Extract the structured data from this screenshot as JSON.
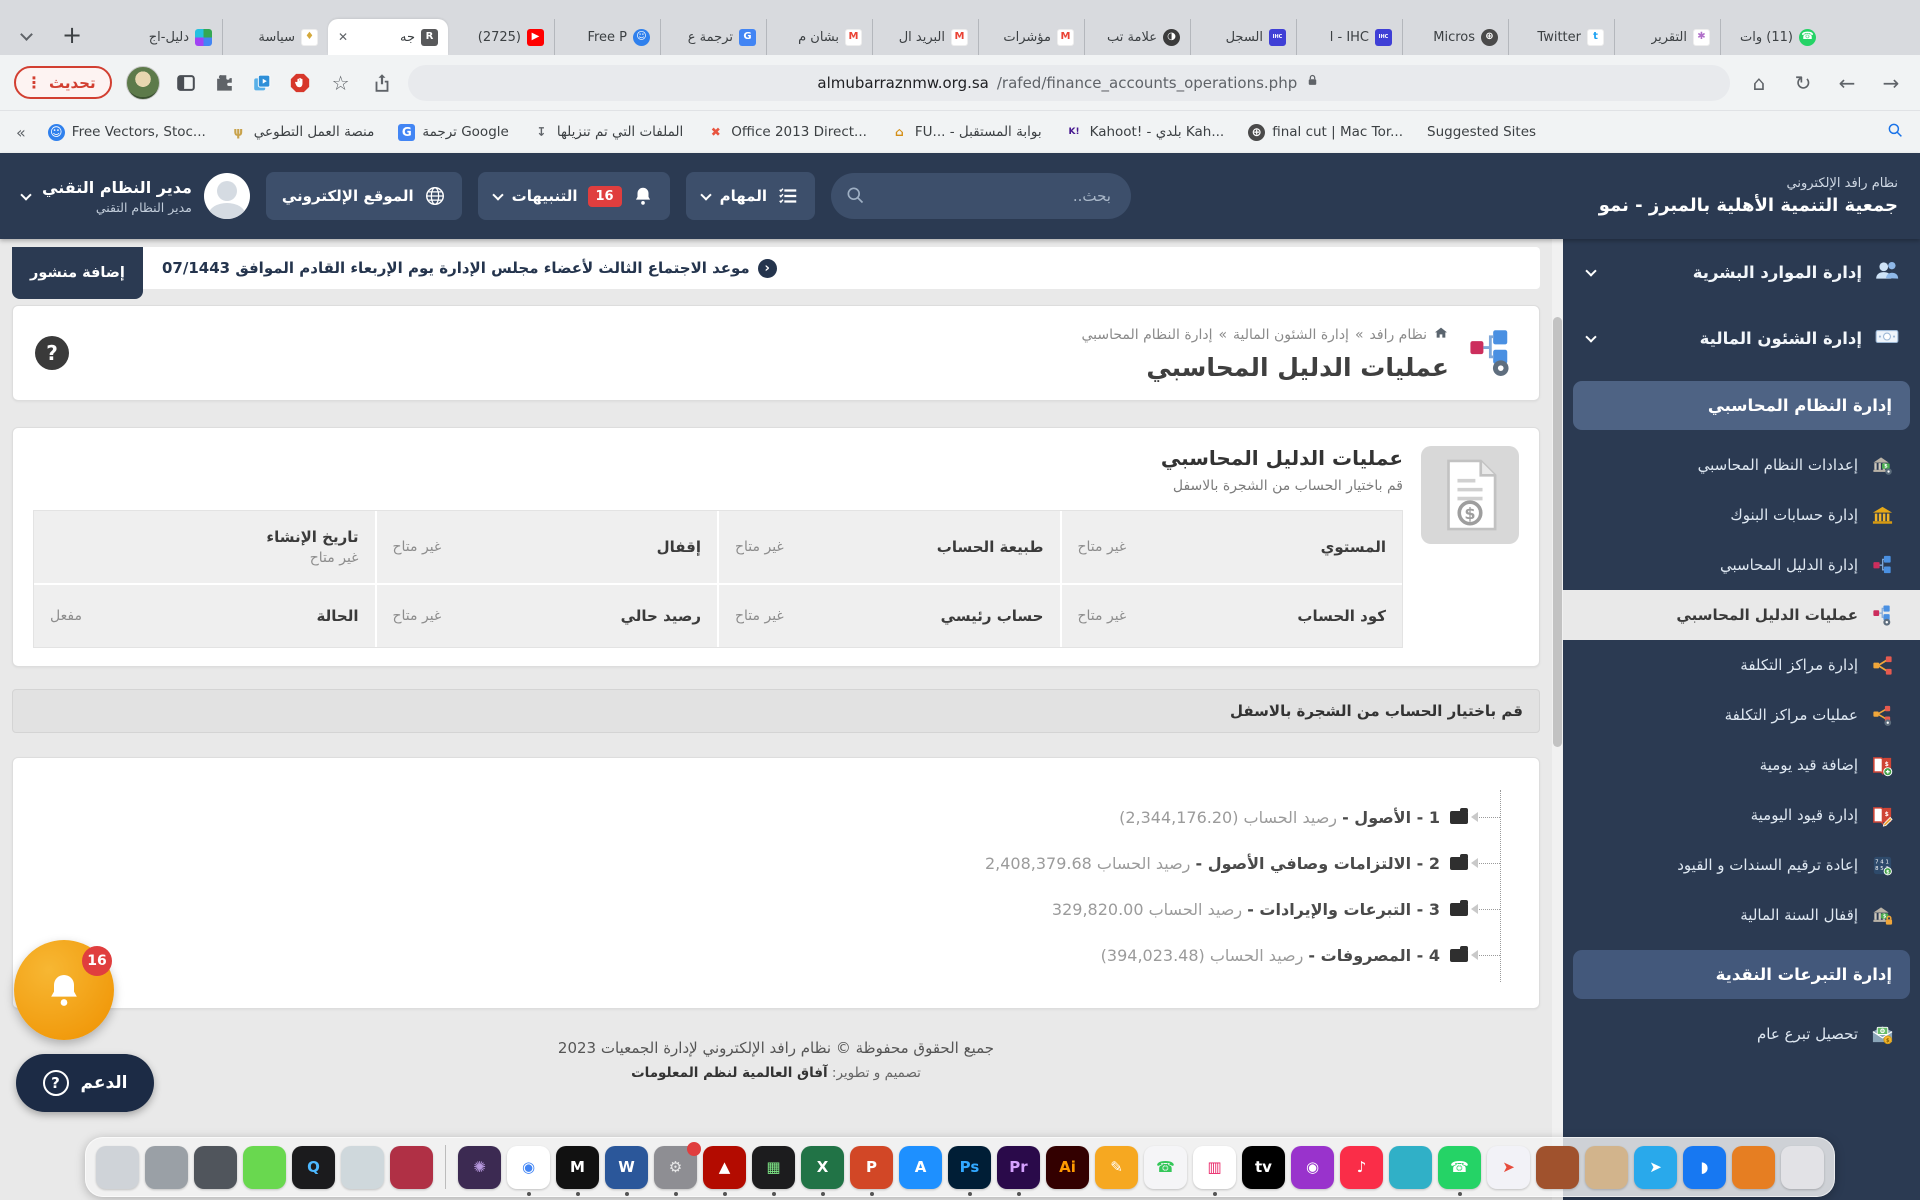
{
  "browser": {
    "close_glyph": "✕",
    "new_tab_plus": "+",
    "tabs": [
      {
        "label": "دليل-اج",
        "icon": "grid-favicon",
        "bg": "grid",
        "glyph": "",
        "fg": "#ffffff"
      },
      {
        "label": "سياسة",
        "icon": "feather-favicon",
        "bg": "#ffffff",
        "glyph": "♦",
        "fg": "#d4a93c"
      },
      {
        "label": "جه",
        "icon": "rafed-favicon",
        "bg": "#58595b",
        "glyph": "R",
        "fg": "#ffffff",
        "active": true
      },
      {
        "label": "(2725)",
        "icon": "youtube-favicon",
        "bg": "#ff0000",
        "glyph": "▶",
        "fg": "#ffffff"
      },
      {
        "label": "Free P",
        "icon": "robot-favicon",
        "bg": "#2f80ed",
        "glyph": "☺",
        "fg": "#ffffff",
        "round": true
      },
      {
        "label": "ترجمة ع",
        "icon": "translate-favicon",
        "bg": "#4285f4",
        "glyph": "G",
        "fg": "#ffffff"
      },
      {
        "label": "بشأن م",
        "icon": "gmail-icon",
        "bg": "#ffffff",
        "glyph": "M",
        "fg": "#ea4335"
      },
      {
        "label": "البريد ال",
        "icon": "gmail-icon",
        "bg": "#ffffff",
        "glyph": "M",
        "fg": "#ea4335"
      },
      {
        "label": "مؤشرات",
        "icon": "gmail-icon",
        "bg": "#ffffff",
        "glyph": "M",
        "fg": "#ea4335"
      },
      {
        "label": "علامة تب",
        "icon": "brave-icon",
        "bg": "#3b3b3b",
        "glyph": "◑",
        "fg": "#ffffff",
        "round": true
      },
      {
        "label": "السجل",
        "icon": "ihc-icon",
        "bg": "#3f3fd6",
        "glyph": "IHC",
        "fg": "#ffffff",
        "tiny": true
      },
      {
        "label": "IHC - ا",
        "icon": "ihc-icon",
        "bg": "#3f3fd6",
        "glyph": "IHC",
        "fg": "#ffffff",
        "tiny": true
      },
      {
        "label": "Micros",
        "icon": "globe-favicon",
        "bg": "#4a4a4a",
        "glyph": "⊕",
        "fg": "#ffffff",
        "round": true
      },
      {
        "label": "Twitter",
        "icon": "twitter-icon",
        "bg": "#ffffff",
        "glyph": "t",
        "fg": "#1da1f2"
      },
      {
        "label": "التقرير",
        "icon": "flower-icon",
        "bg": "#ffffff",
        "glyph": "✱",
        "fg": "#b06fc9"
      },
      {
        "label": "(11) وات",
        "icon": "whatsapp-icon",
        "bg": "#25d366",
        "glyph": "☎",
        "fg": "#ffffff",
        "round": true
      }
    ],
    "update_button": "تحديث",
    "dots_glyph": "⋮",
    "toolbar_glyphs": {
      "star": "☆",
      "home": "⌂",
      "reload": "↻",
      "back": "←",
      "forward": "→"
    },
    "url_host": "almubarraznmw.org.sa",
    "url_path": "/rafed/finance_accounts_operations.php",
    "bookmarks_overflow": "«",
    "bookmarks": [
      {
        "label": "Free Vectors, Stoc...",
        "glyph": "☺",
        "fg": "#ffffff",
        "bg": "#2f80ed",
        "round": true
      },
      {
        "label": "منصة العمل التطوعي",
        "glyph": "ψ",
        "fg": "#c8a24b",
        "bg": "transparent"
      },
      {
        "label": "ترجمة Google",
        "glyph": "G",
        "fg": "#ffffff",
        "bg": "#4285f4"
      },
      {
        "label": "الملفات التي تم تنزيلها",
        "glyph": "↧",
        "fg": "#5f6368",
        "bg": "transparent"
      },
      {
        "label": "Office 2013 Direct...",
        "glyph": "✖",
        "fg": "#e8543f",
        "bg": "transparent"
      },
      {
        "label": "FU... - بوابة المستقبل",
        "glyph": "⌂",
        "fg": "#d48f17",
        "bg": "transparent"
      },
      {
        "label": "Kahoot! - بلدي Kah...",
        "glyph": "K!",
        "fg": "#46178f",
        "bg": "transparent",
        "tiny": true
      },
      {
        "label": "final cut | Mac Tor...",
        "glyph": "⊕",
        "fg": "#ffffff",
        "bg": "#4a4a4a",
        "round": true
      },
      {
        "label": "Suggested Sites",
        "glyph": "",
        "fg": "#5f6368",
        "bg": "transparent"
      }
    ]
  },
  "header": {
    "brand_title": "نظام رافد الإلكتروني",
    "brand_subtitle": "جمعية التنمية الأهلية بالمبرز - نمو",
    "search_placeholder": "بحث..",
    "tasks_label": "المهام",
    "notifications_label": "التنبيهات",
    "notifications_count": "16",
    "website_label": "الموقع الإلكتروني",
    "user_name": "مدير النظام التقني",
    "user_role": "مدير النظام التقني"
  },
  "announcement": {
    "add_post_label": "إضافة منشور",
    "ticker_icon_glyph": "‹",
    "ticker": "موعد الاجتماع الثالث لأعضاء مجلس الإدارة يوم الإربعاء القادم الموافق 07/1443"
  },
  "sidebar": {
    "entries": [
      {
        "type": "section",
        "label": "إدارة الموارد البشرية",
        "icon": "users-icon"
      },
      {
        "type": "section",
        "label": "إدارة الشئون المالية",
        "icon": "money-icon"
      },
      {
        "type": "group",
        "label": "إدارة النظام المحاسبي"
      },
      {
        "type": "item",
        "label": "إعدادات النظام المحاسبي",
        "icon": "bank-gear-icon"
      },
      {
        "type": "item",
        "label": "إدارة حسابات البنوك",
        "icon": "bank-gold-icon"
      },
      {
        "type": "item",
        "label": "إدارة الدليل المحاسبي",
        "icon": "tree-icon"
      },
      {
        "type": "item",
        "label": "عمليات الدليل المحاسبي",
        "icon": "tree-gear-icon",
        "active": true
      },
      {
        "type": "item",
        "label": "إدارة مراكز التكلفة",
        "icon": "share-icon"
      },
      {
        "type": "item",
        "label": "عمليات مراكز التكلفة",
        "icon": "share-gear-icon"
      },
      {
        "type": "item",
        "label": "إضافة قيد يومية",
        "icon": "book-plus-icon"
      },
      {
        "type": "item",
        "label": "إدارة قيود اليومية",
        "icon": "book-pencil-icon"
      },
      {
        "type": "item",
        "label": "إعادة ترقيم السندات و القيود",
        "icon": "numbers-icon"
      },
      {
        "type": "item",
        "label": "إقفال السنة المالية",
        "icon": "bank-lock-icon"
      },
      {
        "type": "group",
        "label": "إدارة التبرعات النقدية",
        "variant": "g2"
      },
      {
        "type": "item",
        "label": "تحصيل تبرع عام",
        "icon": "donation-icon"
      }
    ]
  },
  "page": {
    "breadcrumb": {
      "root": "نظام رافد",
      "sep": "»",
      "level1": "إدارة الشئون المالية",
      "level2": "إدارة النظام المحاسبي"
    },
    "title": "عمليات الدليل المحاسبي",
    "help_glyph": "?",
    "card": {
      "title": "عمليات الدليل المحاسبي",
      "subtitle": "قم باختيار الحساب من الشجرة بالاسفل",
      "table_rows": [
        [
          {
            "label": "المستوي",
            "value": "غير متاح"
          },
          {
            "label": "طبيعة الحساب",
            "value": "غير متاح"
          },
          {
            "label": "إقفال",
            "value": "غير متاح"
          },
          {
            "label": "تاريخ الإنشاء",
            "value": "غير متاح"
          }
        ],
        [
          {
            "label": "كود الحساب",
            "value": "غير متاح"
          },
          {
            "label": "حساب رئيسي",
            "value": "غير متاح"
          },
          {
            "label": "رصيد حالي",
            "value": "غير متاح"
          },
          {
            "label": "الحالة",
            "value": "مفعل"
          }
        ]
      ]
    },
    "picker_bar": "قم باختيار الحساب من الشجرة بالاسفل",
    "tree": [
      {
        "title": "1 - الأصول -",
        "rest": "رصيد الحساب (2,344,176.20)"
      },
      {
        "title": "2 - الالتزامات وصافي الأصول -",
        "rest": "رصيد الحساب 2,408,379.68"
      },
      {
        "title": "3 - التبرعات والإيرادات -",
        "rest": "رصيد الحساب 329,820.00"
      },
      {
        "title": "4 - المصروفات -",
        "rest": "رصيد الحساب (394,023.48)"
      }
    ],
    "footer": {
      "line1": "جميع الحقوق محفوظة © نظام رافد الإلكتروني لإدارة الجمعيات 2023",
      "line2_label": "تصميم و تطوير:",
      "line2_value": "آفاق العالمية لنظم المعلومات"
    }
  },
  "floating": {
    "support_label": "الدعم",
    "help_glyph": "?",
    "badge": "16"
  },
  "dock": {
    "apps": [
      {
        "name": "app-window",
        "color": "#cfd3d8"
      },
      {
        "name": "app-gray-doc",
        "color": "#9aa0a6"
      },
      {
        "name": "app-dark",
        "color": "#50555c"
      },
      {
        "name": "app-unarchiver",
        "color": "#69d84f"
      },
      {
        "name": "app-quicktime",
        "color": "#1b1b1d",
        "glyph": "Q",
        "fg": "#4db8ff"
      },
      {
        "name": "app-preview",
        "color": "#cfd8dc"
      },
      {
        "name": "app-redmedia",
        "color": "#b03045"
      },
      {
        "sep": true,
        "name": "dock-separator"
      },
      {
        "name": "app-darkpurple",
        "color": "#3c2a52",
        "glyph": "✺",
        "fg": "#b99ae0"
      },
      {
        "name": "app-chrome",
        "color": "#ffffff",
        "glyph": "◉",
        "fg": "#4285f4",
        "dot": true
      },
      {
        "name": "app-m-black",
        "color": "#111111",
        "glyph": "M",
        "fg": "#ffffff",
        "dot": true
      },
      {
        "name": "app-word",
        "color": "#2b579a",
        "glyph": "W",
        "fg": "#ffffff",
        "dot": true
      },
      {
        "name": "app-settings",
        "color": "#8e8e93",
        "glyph": "⚙",
        "fg": "#e8e8e8",
        "badge": true,
        "dot": true
      },
      {
        "name": "app-acrobat",
        "color": "#b30b00",
        "glyph": "▲",
        "fg": "#ffffff",
        "dot": true
      },
      {
        "name": "app-finalcut",
        "color": "#1c1c1e",
        "glyph": "▦",
        "fg": "#7ee787",
        "dot": true
      },
      {
        "name": "app-excel",
        "color": "#217346",
        "glyph": "X",
        "fg": "#ffffff",
        "dot": true
      },
      {
        "name": "app-powerpoint",
        "color": "#d24726",
        "glyph": "P",
        "fg": "#ffffff",
        "dot": true
      },
      {
        "name": "app-appstore",
        "color": "#1e90ff",
        "glyph": "A",
        "fg": "#ffffff"
      },
      {
        "name": "app-photoshop",
        "color": "#001e36",
        "glyph": "Ps",
        "fg": "#31a8ff",
        "dot": true
      },
      {
        "name": "app-premiere",
        "color": "#2a0a4a",
        "glyph": "Pr",
        "fg": "#d6a1ff",
        "dot": true
      },
      {
        "name": "app-illustrator",
        "color": "#330000",
        "glyph": "Ai",
        "fg": "#ff9a00"
      },
      {
        "name": "app-pencil",
        "color": "#f6a821",
        "glyph": "✎",
        "fg": "#ffffff"
      },
      {
        "name": "app-facetime",
        "color": "#f5f5f7",
        "glyph": "☎",
        "fg": "#34c759"
      },
      {
        "name": "app-charts",
        "color": "#ffffff",
        "glyph": "▥",
        "fg": "#e91e63",
        "dot": true
      },
      {
        "name": "app-appletv",
        "color": "#000000",
        "glyph": "tv",
        "fg": "#ffffff"
      },
      {
        "name": "app-podcasts",
        "color": "#9933cc",
        "glyph": "◉",
        "fg": "#ffffff"
      },
      {
        "name": "app-music",
        "color": "#fa2d48",
        "glyph": "♪",
        "fg": "#ffffff"
      },
      {
        "name": "app-teal",
        "color": "#30b0c7"
      },
      {
        "name": "app-whatsapp",
        "color": "#25d366",
        "glyph": "☎",
        "fg": "#ffffff",
        "dot": true
      },
      {
        "name": "app-maps",
        "color": "#f2f2f7",
        "glyph": "➤",
        "fg": "#e74c3c"
      },
      {
        "name": "app-books",
        "color": "#a0522d"
      },
      {
        "name": "app-folder",
        "color": "#d2b48c"
      },
      {
        "name": "app-telegram",
        "color": "#29a9eb",
        "glyph": "➤",
        "fg": "#ffffff"
      },
      {
        "name": "app-messenger",
        "color": "#1778f2",
        "glyph": "◗",
        "fg": "#ffffff"
      },
      {
        "name": "app-orange",
        "color": "#e67e22"
      },
      {
        "name": "app-trash",
        "color": "#e2e2e6"
      }
    ]
  }
}
